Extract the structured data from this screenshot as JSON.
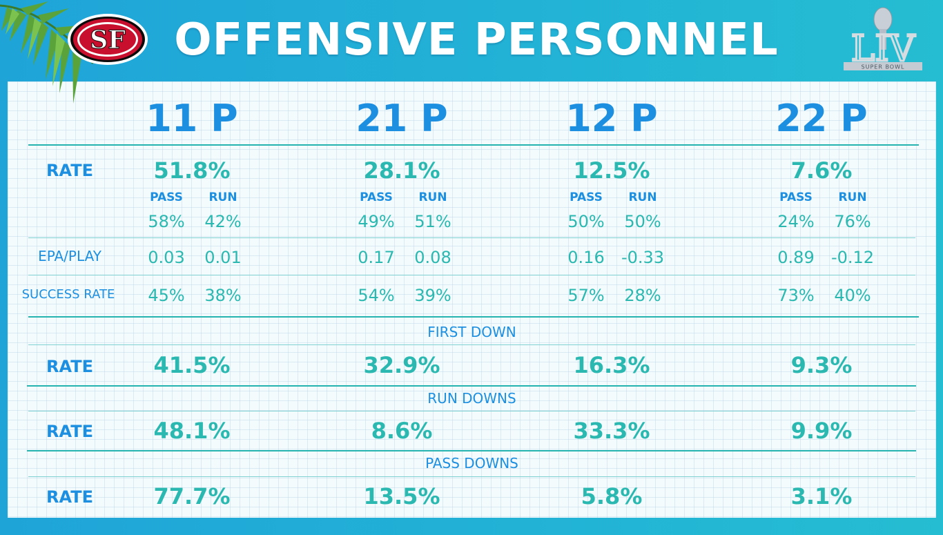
{
  "header": {
    "title": "OFFENSIVE PERSONNEL",
    "team_logo_text": "SF",
    "superbowl_text": "LIV",
    "superbowl_sub": "SUPER BOWL"
  },
  "colors": {
    "background": "#1fa4d8",
    "heading_blue": "#1d8fe0",
    "value_teal": "#2ab8b0",
    "rule_teal": "#25b3b0",
    "logo_red": "#c8102e"
  },
  "columns": [
    {
      "label": "11 P",
      "rate": "51.8%",
      "pass": "58%",
      "run": "42%",
      "epa_pass": "0.03",
      "epa_run": "0.01",
      "sr_pass": "45%",
      "sr_run": "38%",
      "first_down": "41.5%",
      "run_downs": "48.1%",
      "pass_downs": "77.7%"
    },
    {
      "label": "21 P",
      "rate": "28.1%",
      "pass": "49%",
      "run": "51%",
      "epa_pass": "0.17",
      "epa_run": "0.08",
      "sr_pass": "54%",
      "sr_run": "39%",
      "first_down": "32.9%",
      "run_downs": "8.6%",
      "pass_downs": "13.5%"
    },
    {
      "label": "12 P",
      "rate": "12.5%",
      "pass": "50%",
      "run": "50%",
      "epa_pass": "0.16",
      "epa_run": "-0.33",
      "sr_pass": "57%",
      "sr_run": "28%",
      "first_down": "16.3%",
      "run_downs": "33.3%",
      "pass_downs": "5.8%"
    },
    {
      "label": "22 P",
      "rate": "7.6%",
      "pass": "24%",
      "run": "76%",
      "epa_pass": "0.89",
      "epa_run": "-0.12",
      "sr_pass": "73%",
      "sr_run": "40%",
      "first_down": "9.3%",
      "run_downs": "9.9%",
      "pass_downs": "3.1%"
    }
  ],
  "labels": {
    "rate": "RATE",
    "pass": "PASS",
    "run": "RUN",
    "epa": "EPA/PLAY",
    "success_rate": "SUCCESS RATE"
  },
  "sections": {
    "first_down": "FIRST DOWN",
    "run_downs": "RUN DOWNS",
    "pass_downs": "PASS DOWNS"
  }
}
